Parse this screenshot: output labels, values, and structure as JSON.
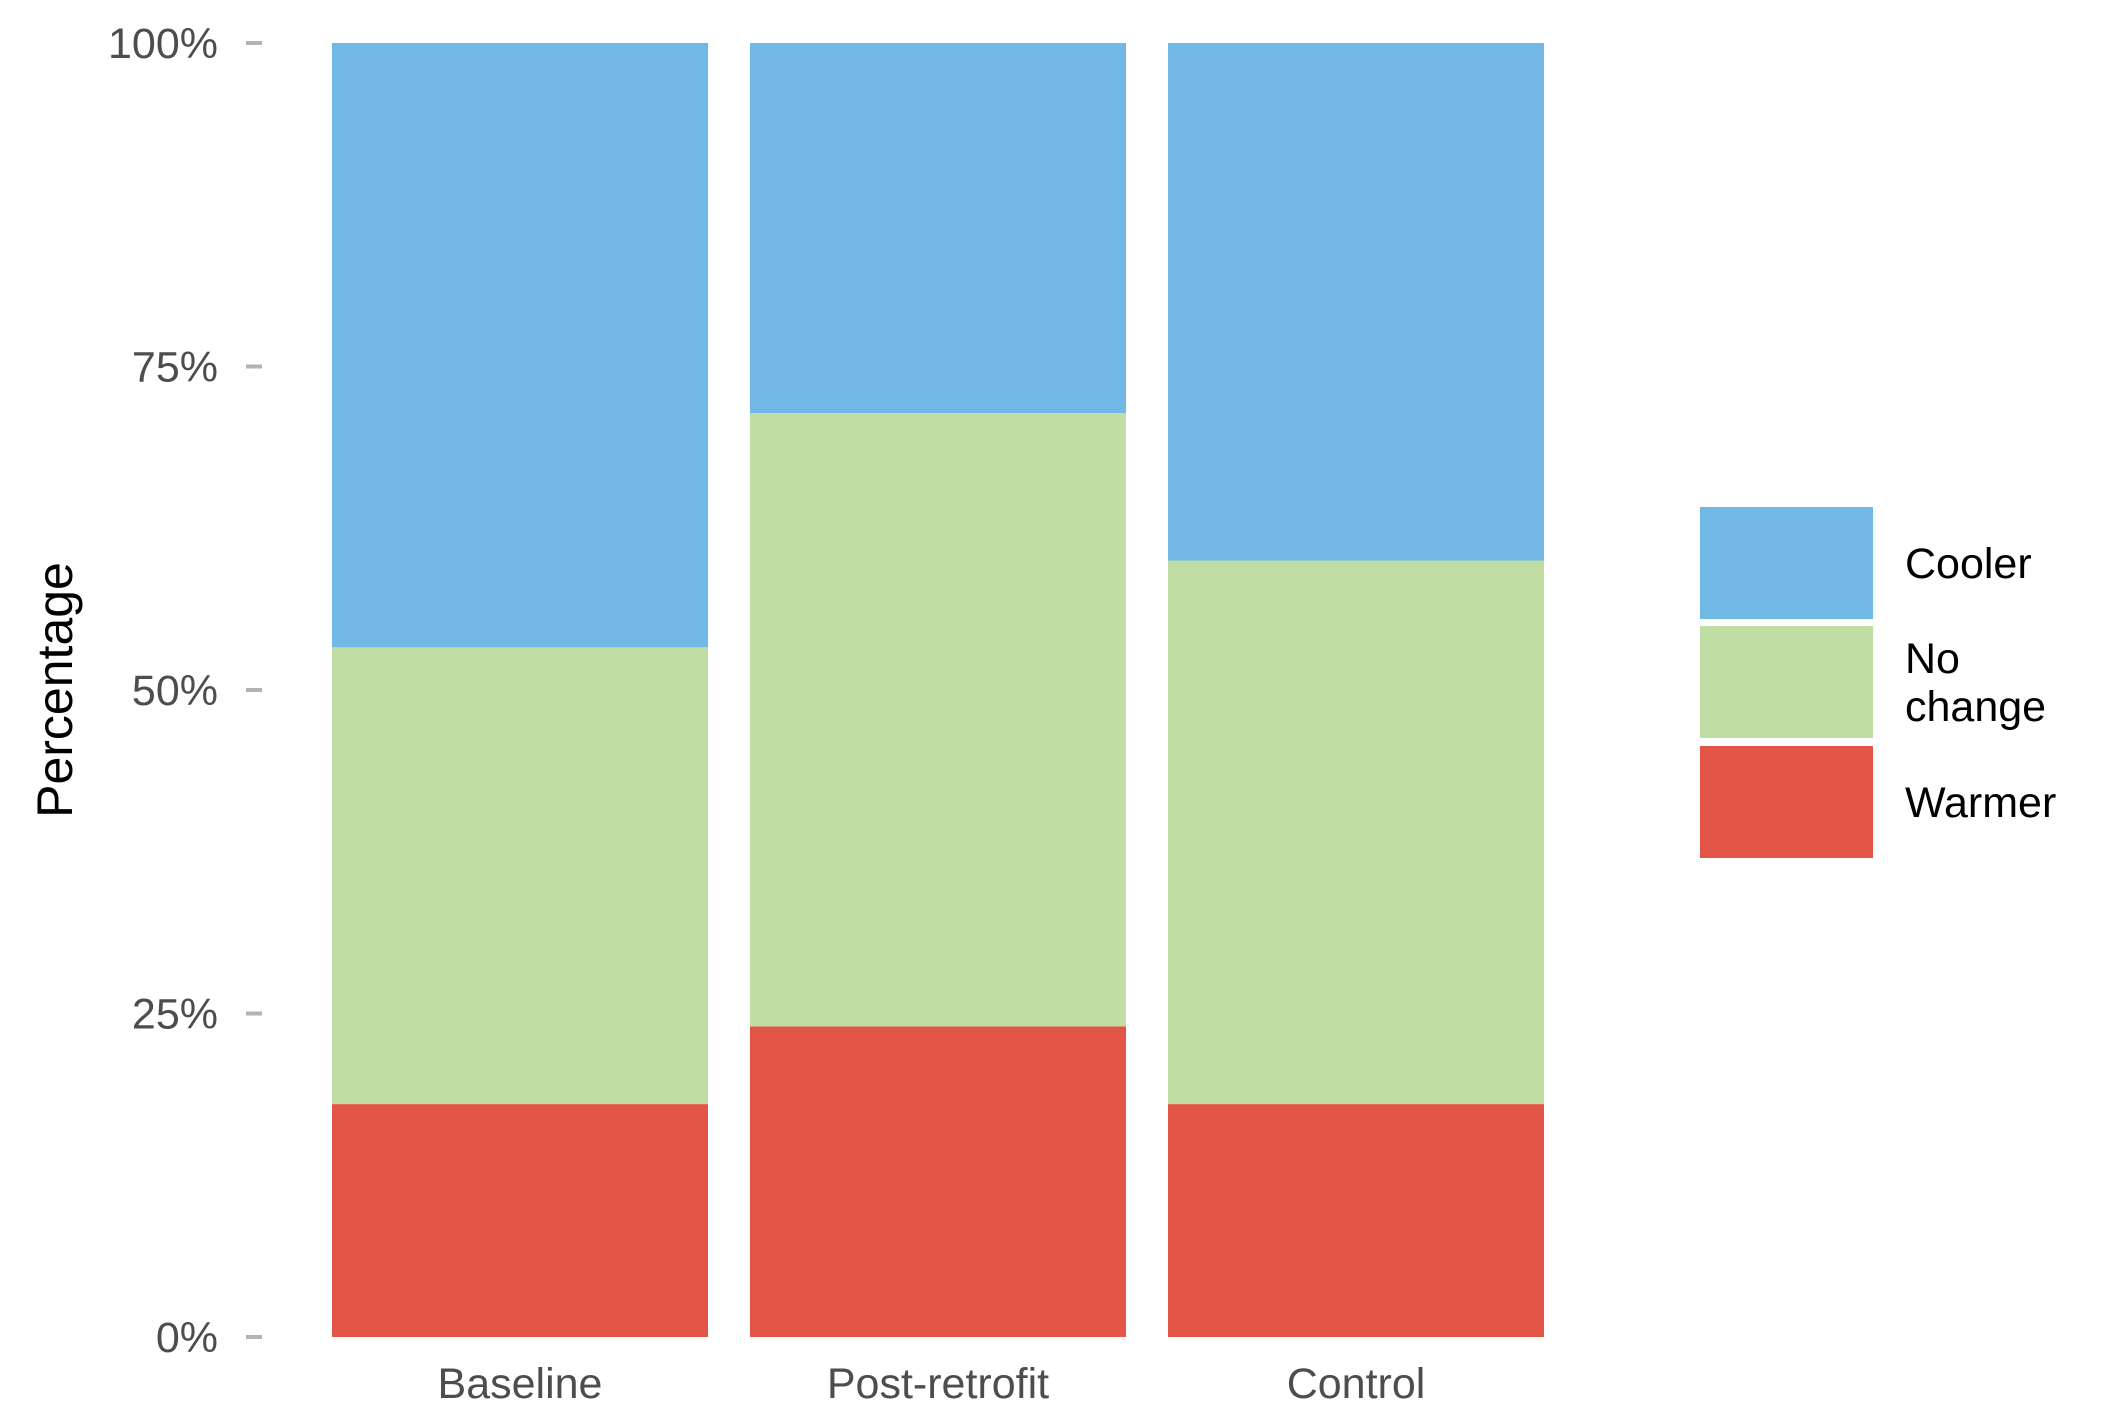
{
  "chart_data": {
    "type": "bar",
    "stacked": true,
    "normalized": true,
    "title": "",
    "xlabel": "",
    "ylabel": "Percentage",
    "ylim": [
      0,
      100
    ],
    "y_ticks": [
      {
        "value": 0,
        "label": "0%"
      },
      {
        "value": 25,
        "label": "25%"
      },
      {
        "value": 50,
        "label": "50%"
      },
      {
        "value": 75,
        "label": "75%"
      },
      {
        "value": 100,
        "label": "100%"
      }
    ],
    "categories": [
      "Baseline",
      "Post-retrofit",
      "Control"
    ],
    "series": [
      {
        "name": "Warmer",
        "color": "#e35547",
        "values": [
          18,
          24,
          18
        ]
      },
      {
        "name": "No change",
        "color": "#c0dda3",
        "values": [
          35.3,
          47.4,
          42
        ]
      },
      {
        "name": "Cooler",
        "color": "#71b8e7",
        "values": [
          46.7,
          28.6,
          40
        ]
      }
    ],
    "legend": {
      "position": "right",
      "order": [
        "Cooler",
        "No change",
        "Warmer"
      ],
      "labels": {
        "Cooler": [
          "Cooler"
        ],
        "No change": [
          "No",
          "change"
        ],
        "Warmer": [
          "Warmer"
        ]
      }
    },
    "grid": false,
    "tick_color": "#b3b3b3"
  }
}
